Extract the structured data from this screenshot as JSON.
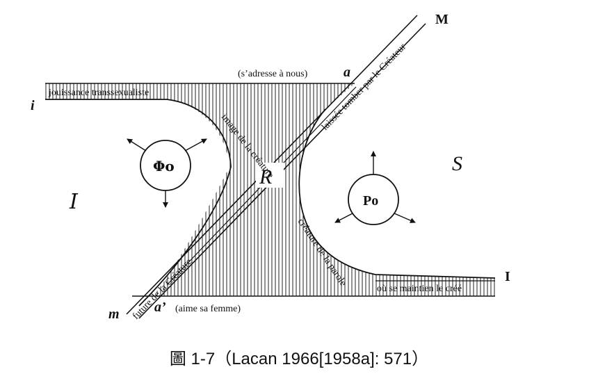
{
  "vertices": {
    "i": "i",
    "M": "M",
    "m": "m",
    "I": "I",
    "a": "a",
    "a_prime": "a’"
  },
  "edge_labels": {
    "top": "jouissance transsexualiste",
    "bottom_right": "où se maintien le créé",
    "diagonal_upper": "laissée tomber par le Créateur",
    "diagonal_lower": "future de la Créature",
    "curve_left": "image de la créature",
    "curve_right": "créature de la parole",
    "above_a": "(s’adresse à nous)",
    "right_of_a_prime": "(aime sa femme)"
  },
  "regions": {
    "imaginary": "I",
    "symbolic": "S",
    "real": "R"
  },
  "circles": {
    "phi": "Φo",
    "p": "Po"
  },
  "caption": "圖 1-7（Lacan 1966[1958a]: 571）"
}
